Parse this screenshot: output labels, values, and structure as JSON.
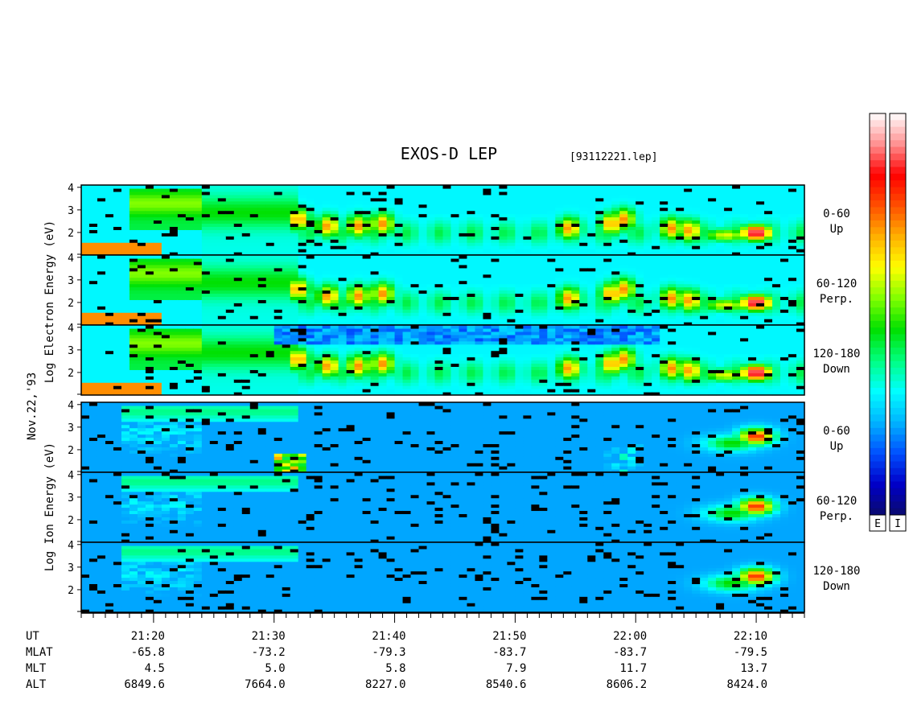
{
  "chart_data": {
    "type": "heatmap",
    "title": "EXOS-D LEP",
    "file_label": "[93112221.lep]",
    "date_label": "Nov.22,'93",
    "electron_axis_label": "Log Electron Energy (eV)",
    "ion_axis_label": "Log Ion Energy (eV)",
    "ylim": [
      1,
      4.1
    ],
    "y_ticks": [
      "4",
      "3",
      "2"
    ],
    "electron_panels": [
      {
        "range": "0-60",
        "direction": "Up"
      },
      {
        "range": "60-120",
        "direction": "Perp."
      },
      {
        "range": "120-180",
        "direction": "Down"
      }
    ],
    "ion_panels": [
      {
        "range": "0-60",
        "direction": "Up"
      },
      {
        "range": "60-120",
        "direction": "Perp."
      },
      {
        "range": "120-180",
        "direction": "Down"
      }
    ],
    "colorbars": [
      {
        "label": "E"
      },
      {
        "label": "I"
      }
    ],
    "colormap": [
      "#0a0a6e",
      "#0000c8",
      "#0050ff",
      "#00b4ff",
      "#00ffff",
      "#00ff7f",
      "#00e000",
      "#80ff00",
      "#ffff00",
      "#ffb000",
      "#ff5000",
      "#ff0000",
      "#ff9090",
      "#ffffff"
    ],
    "x_axis": {
      "tmin": 1274,
      "tmax": 1334,
      "labels": [
        {
          "t": 1280,
          "UT": "21:20",
          "MLAT": "-65.8",
          "MLT": "4.5",
          "ALT": "6849.6"
        },
        {
          "t": 1290,
          "UT": "21:30",
          "MLAT": "-73.2",
          "MLT": "5.0",
          "ALT": "7664.0"
        },
        {
          "t": 1300,
          "UT": "21:40",
          "MLAT": "-79.3",
          "MLT": "5.8",
          "ALT": "8227.0"
        },
        {
          "t": 1310,
          "UT": "21:50",
          "MLAT": "-83.7",
          "MLT": "7.9",
          "ALT": "8540.6"
        },
        {
          "t": 1320,
          "UT": "22:00",
          "MLAT": "-83.7",
          "MLT": "11.7",
          "ALT": "8606.2"
        },
        {
          "t": 1330,
          "UT": "22:10",
          "MLAT": "-79.5",
          "MLT": "13.7",
          "ALT": "8424.0"
        }
      ]
    },
    "row_labels": [
      "UT",
      "MLAT",
      "MLT",
      "ALT"
    ]
  }
}
